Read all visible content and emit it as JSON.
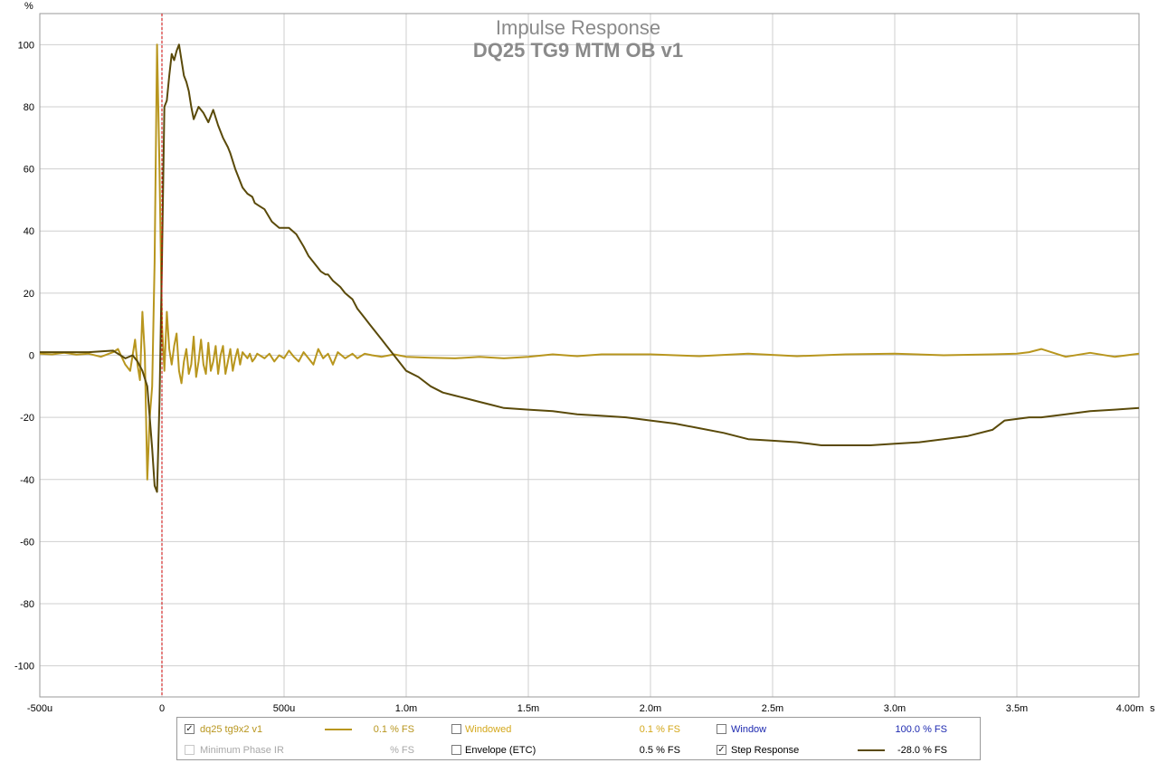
{
  "chart_data": {
    "type": "line",
    "title": "Impulse Response",
    "subtitle": "DQ25 TG9 MTM OB v1",
    "y_unit": "%",
    "x_unit": "s",
    "xlim": [
      -0.0005,
      0.004
    ],
    "ylim": [
      -110,
      110
    ],
    "x_ticks": [
      -0.0005,
      0,
      0.0005,
      0.001,
      0.0015,
      0.002,
      0.0025,
      0.003,
      0.0035,
      0.004
    ],
    "x_tick_labels": [
      "-500u",
      "0",
      "500u",
      "1.0m",
      "1.5m",
      "2.0m",
      "2.5m",
      "3.0m",
      "3.5m",
      "4.00m"
    ],
    "y_ticks": [
      100,
      80,
      60,
      40,
      20,
      0,
      -20,
      -40,
      -60,
      -80,
      -100
    ],
    "y_tick_labels": [
      "100",
      "80",
      "60",
      "40",
      "20",
      "0",
      "-20",
      "-40",
      "-60",
      "-80",
      "-100"
    ],
    "grid": true,
    "marker_x": 0,
    "series": [
      {
        "name": "dq25 tg9x2 v1",
        "color": "#b8961e",
        "x": [
          -0.0005,
          -0.00045,
          -0.0004,
          -0.00035,
          -0.0003,
          -0.00025,
          -0.0002,
          -0.00018,
          -0.00015,
          -0.00013,
          -0.00011,
          -0.0001,
          -9e-05,
          -8e-05,
          -7e-05,
          -6e-05,
          -5e-05,
          -4e-05,
          -3e-05,
          -2e-05,
          -1e-05,
          0,
          1e-05,
          2e-05,
          3e-05,
          4e-05,
          5e-05,
          6e-05,
          7e-05,
          8e-05,
          9e-05,
          0.0001,
          0.00011,
          0.00012,
          0.00013,
          0.00014,
          0.00015,
          0.00016,
          0.00017,
          0.00018,
          0.00019,
          0.0002,
          0.00021,
          0.00022,
          0.00023,
          0.00024,
          0.00025,
          0.00026,
          0.00027,
          0.00028,
          0.00029,
          0.0003,
          0.00031,
          0.00032,
          0.00033,
          0.00034,
          0.00035,
          0.00036,
          0.00037,
          0.00038,
          0.00039,
          0.0004,
          0.00042,
          0.00044,
          0.00046,
          0.00048,
          0.0005,
          0.00052,
          0.00054,
          0.00056,
          0.00058,
          0.0006,
          0.00062,
          0.00064,
          0.00066,
          0.00068,
          0.0007,
          0.00072,
          0.00075,
          0.00078,
          0.0008,
          0.00083,
          0.00086,
          0.0009,
          0.00095,
          0.001,
          0.0011,
          0.0012,
          0.0013,
          0.0014,
          0.0015,
          0.0016,
          0.0017,
          0.0018,
          0.002,
          0.0022,
          0.0024,
          0.0026,
          0.0028,
          0.003,
          0.0032,
          0.0034,
          0.0035,
          0.00355,
          0.0036,
          0.0037,
          0.0038,
          0.0039,
          0.004
        ],
        "y": [
          0.5,
          0.3,
          0.8,
          0.2,
          0.5,
          -0.5,
          1,
          2,
          -3,
          -5,
          5,
          -3,
          -8,
          14,
          0,
          -40,
          -20,
          -10,
          30,
          100,
          60,
          10,
          -5,
          14,
          2,
          -3,
          3,
          7,
          -5,
          -9,
          -2,
          2,
          -6,
          -3,
          6,
          -7,
          -2,
          5,
          -3,
          -6,
          4,
          -5,
          -2,
          3,
          -6,
          0,
          3,
          -6,
          -2,
          2,
          -5,
          -1,
          2,
          -3,
          1,
          0,
          -1,
          0.5,
          -2,
          -1,
          0.5,
          0,
          -1,
          0.5,
          -2,
          0,
          -1,
          1.5,
          -0.5,
          -2,
          1,
          -1,
          -3,
          2,
          -1,
          0.5,
          -3,
          1,
          -1,
          0.5,
          -1,
          0.5,
          0,
          -0.5,
          0.3,
          -0.5,
          -0.8,
          -1,
          -0.5,
          -1,
          -0.5,
          0.3,
          -0.3,
          0.3,
          0.3,
          -0.3,
          0.5,
          -0.3,
          0.3,
          0.5,
          0,
          0.3,
          0.5,
          1,
          2,
          -0.5,
          0.8,
          -0.5,
          0.5
        ]
      },
      {
        "name": "Step Response",
        "color": "#5a4a0a",
        "x": [
          -0.0005,
          -0.0004,
          -0.0003,
          -0.0002,
          -0.00015,
          -0.00012,
          -0.0001,
          -8e-05,
          -6e-05,
          -4e-05,
          -3e-05,
          -2e-05,
          -1e-05,
          0,
          1e-05,
          2e-05,
          3e-05,
          4e-05,
          5e-05,
          6e-05,
          7e-05,
          8e-05,
          9e-05,
          0.0001,
          0.00011,
          0.00012,
          0.00013,
          0.00015,
          0.00017,
          0.00019,
          0.0002,
          0.00021,
          0.00023,
          0.00024,
          0.00025,
          0.00027,
          0.00028,
          0.0003,
          0.00031,
          0.00033,
          0.00035,
          0.00037,
          0.00038,
          0.0004,
          0.00042,
          0.00045,
          0.00048,
          0.0005,
          0.00052,
          0.00055,
          0.00058,
          0.0006,
          0.00062,
          0.00065,
          0.00067,
          0.00068,
          0.0007,
          0.00073,
          0.00075,
          0.00078,
          0.0008,
          0.00083,
          0.00085,
          0.0009,
          0.00095,
          0.001,
          0.00105,
          0.0011,
          0.00115,
          0.0012,
          0.00125,
          0.0013,
          0.00135,
          0.0014,
          0.0015,
          0.0016,
          0.0017,
          0.0018,
          0.0019,
          0.002,
          0.0021,
          0.0022,
          0.0023,
          0.0024,
          0.0025,
          0.0026,
          0.00265,
          0.0027,
          0.0028,
          0.0029,
          0.003,
          0.0031,
          0.0032,
          0.0033,
          0.0034,
          0.00345,
          0.0035,
          0.00355,
          0.0036,
          0.0037,
          0.0038,
          0.0039,
          0.004
        ],
        "y": [
          1,
          1,
          1,
          1.5,
          -1,
          0,
          -2,
          -5,
          -10,
          -30,
          -42,
          -44,
          -15,
          30,
          80,
          82,
          90,
          97,
          95,
          98,
          100,
          95,
          90,
          88,
          85,
          80,
          76,
          80,
          78,
          75,
          77,
          79,
          74,
          72,
          70,
          67,
          65,
          60,
          58,
          54,
          52,
          51,
          49,
          48,
          47,
          43,
          41,
          41,
          41,
          39,
          35,
          32,
          30,
          27,
          26,
          26,
          24,
          22,
          20,
          18,
          15,
          12,
          10,
          5,
          0,
          -5,
          -7,
          -10,
          -12,
          -13,
          -14,
          -15,
          -16,
          -17,
          -17.5,
          -18,
          -19,
          -19.5,
          -20,
          -21,
          -22,
          -23.5,
          -25,
          -27,
          -27.5,
          -28,
          -28.5,
          -29,
          -29,
          -29,
          -28.5,
          -28,
          -27,
          -26,
          -24,
          -21,
          -20.5,
          -20,
          -20,
          -19,
          -18,
          -17.5,
          -17
        ]
      }
    ]
  },
  "legend": {
    "row1": {
      "dq25_label": "dq25 tg9x2 v1",
      "dq25_value": "0.1 % FS",
      "windowed_label": "Windowed",
      "windowed_value": "0.1 % FS",
      "window_label": "Window",
      "window_value": "100.0 % FS"
    },
    "row2": {
      "minphase_label": "Minimum Phase IR",
      "minphase_value": "% FS",
      "envelope_label": "Envelope (ETC)",
      "envelope_value": "0.5 % FS",
      "step_label": "Step Response",
      "step_value": "-28.0 % FS"
    },
    "check_mark": "✓",
    "colors": {
      "dq25": "#b8961e",
      "windowed": "#d4a81c",
      "window": "#1e2ab0",
      "disabled": "#a8a8a8",
      "envelope": "#000000",
      "step": "#5a4a0a"
    }
  }
}
